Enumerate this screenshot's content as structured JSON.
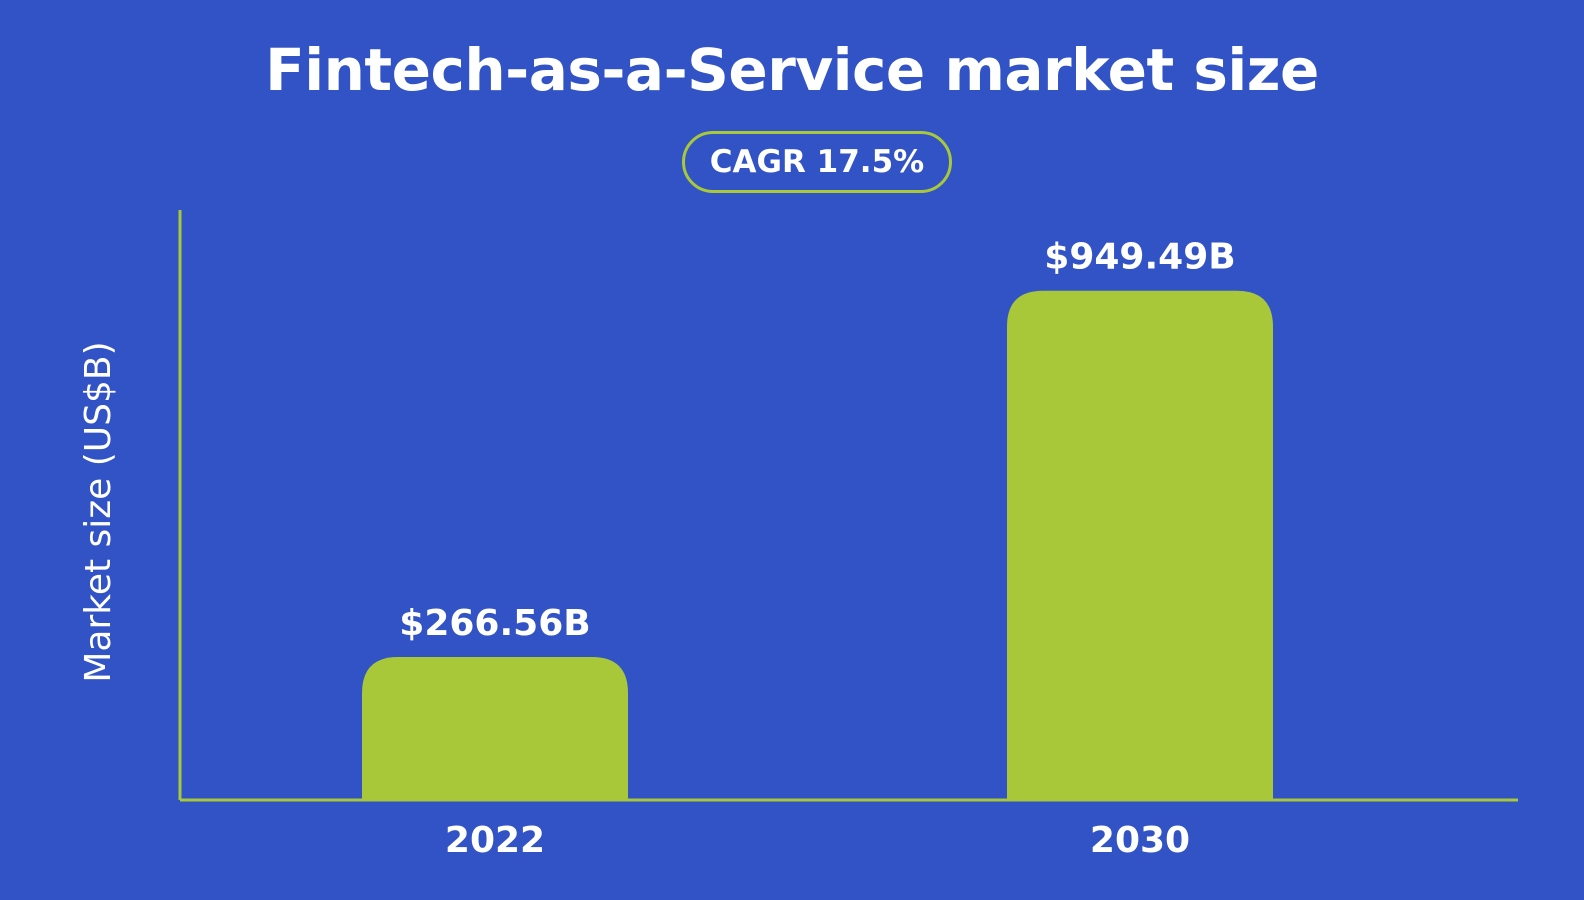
{
  "chart_data": {
    "type": "bar",
    "title": "Fintech-as-a-Service market size",
    "subtitle": "CAGR 17.5%",
    "categories": [
      "2022",
      "2030"
    ],
    "values": [
      266.56,
      949.49
    ],
    "data_labels": [
      "$266.56B",
      "$949.49B"
    ],
    "xlabel": "",
    "ylabel": "Market size (US$B)",
    "ylim": [
      0,
      1100
    ],
    "grid": false,
    "legend": "none",
    "colors": {
      "background": "#3153c6",
      "bar": "#a8c83a",
      "axis": "#a8c83a",
      "text": "#ffffff"
    }
  }
}
